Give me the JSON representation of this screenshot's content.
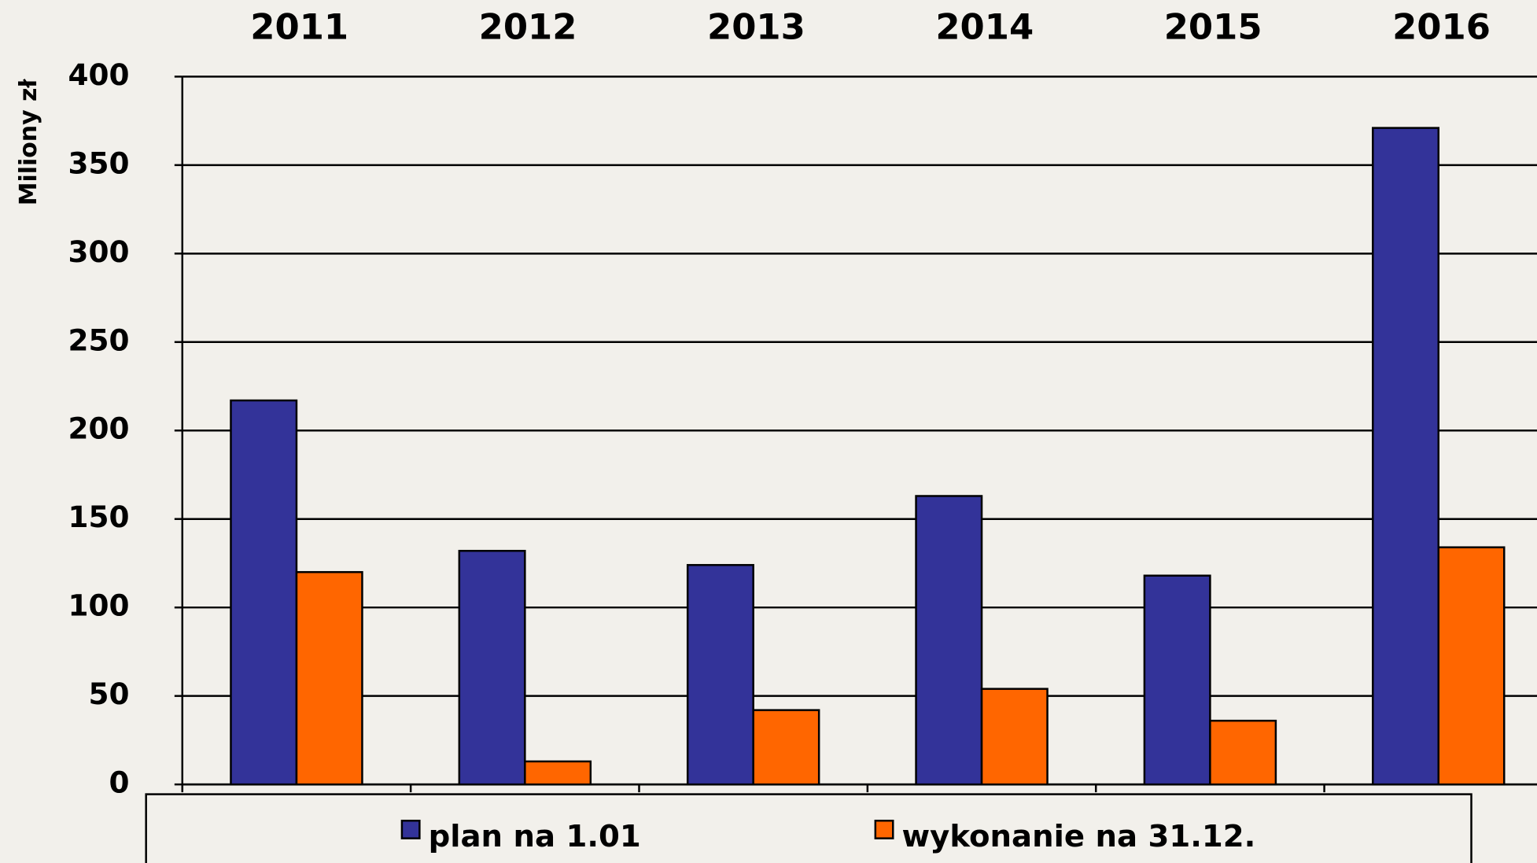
{
  "chart_data": {
    "type": "bar",
    "y_label": "Miliony zł",
    "categories": [
      "2011",
      "2012",
      "2013",
      "2014",
      "2015",
      "2016"
    ],
    "series": [
      {
        "name": "plan na 1.01",
        "color": "#333399",
        "values": [
          217,
          132,
          124,
          163,
          118,
          371
        ]
      },
      {
        "name": "wykonanie na 31.12.",
        "color": "#ff6600",
        "values": [
          120,
          13,
          42,
          54,
          36,
          134
        ]
      }
    ],
    "ylim": [
      0,
      400
    ],
    "yticks": [
      0,
      50,
      100,
      150,
      200,
      250,
      300,
      350,
      400
    ],
    "grid": true,
    "legend": "bottom"
  }
}
